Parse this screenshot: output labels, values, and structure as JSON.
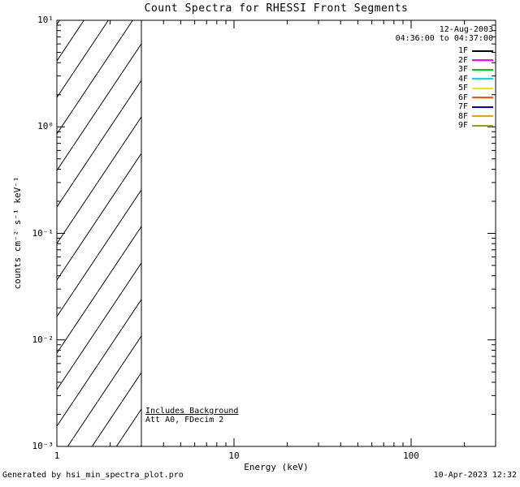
{
  "header": {
    "date": "12-Aug-2003",
    "time_range": "04:36:00 to 04:37:00"
  },
  "annotations": {
    "line1": "Includes Background",
    "line2": "Att A0, FDecim 2"
  },
  "footer": {
    "left": "Generated by hsi_min_spectra_plot.pro",
    "right": "10-Apr-2023 12:32"
  },
  "chart_data": {
    "type": "line",
    "title": "Count Spectra for RHESSI Front Segments",
    "xlabel": "Energy (keV)",
    "ylabel": "counts cm⁻² s⁻¹ keV⁻¹",
    "xscale": "log",
    "yscale": "log",
    "xlim": [
      1,
      300
    ],
    "ylim": [
      0.001,
      10
    ],
    "x_tick_values": [
      1,
      10,
      100
    ],
    "x_tick_labels": [
      "1",
      "10",
      "100"
    ],
    "y_tick_values": [
      10,
      1,
      0.1,
      0.01,
      0.001
    ],
    "y_tick_labels": [
      "10¹",
      "10⁰",
      "10⁻¹",
      "10⁻²",
      "10⁻³"
    ],
    "grid": false,
    "series": [],
    "hatched_region": {
      "x_min": 1,
      "x_max": 3
    },
    "legend_position": "top-right",
    "legend": [
      {
        "label": "1F",
        "color": "#000000"
      },
      {
        "label": "2F",
        "color": "#ff00ff"
      },
      {
        "label": "3F",
        "color": "#00cc00"
      },
      {
        "label": "4F",
        "color": "#00e0e0"
      },
      {
        "label": "5F",
        "color": "#e8e800"
      },
      {
        "label": "6F",
        "color": "#ff5500"
      },
      {
        "label": "7F",
        "color": "#0000cc"
      },
      {
        "label": "8F",
        "color": "#ff9900"
      },
      {
        "label": "9F",
        "color": "#a0a000"
      }
    ]
  }
}
